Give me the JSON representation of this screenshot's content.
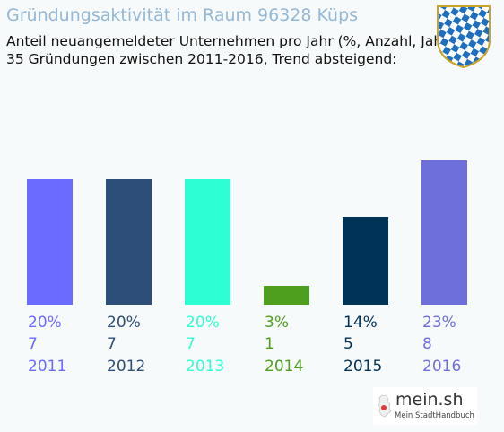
{
  "header": {
    "title": "Gründungsaktivität im Raum 96328 Küps",
    "subtitle_line1": "Anteil neuangemeldeter Unternehmen pro Jahr (%, Anzahl, Jahr)",
    "subtitle_line2": "35 Gründungen zwischen 2011-2016, Trend absteigend:"
  },
  "logo": {
    "name": "mein.sh",
    "tagline": "Mein StadtHandbuch",
    "icon": "germany-map-icon"
  },
  "crest": {
    "icon": "bavaria-coat-of-arms-icon",
    "colors": [
      "#1e6fc0",
      "#ffffff"
    ]
  },
  "chart_data": {
    "type": "bar",
    "categories": [
      "2011",
      "2012",
      "2013",
      "2014",
      "2015",
      "2016"
    ],
    "series": [
      {
        "values": [
          20,
          20,
          20,
          3,
          14,
          23
        ],
        "counts": [
          7,
          7,
          7,
          1,
          5,
          8
        ],
        "percent_labels": [
          "20%",
          "20%",
          "20%",
          "3%",
          "14%",
          "23%"
        ],
        "count_labels": [
          "7",
          "7",
          "7",
          "1",
          "5",
          "8"
        ],
        "colors": [
          "#6b6bff",
          "#2d4e78",
          "#2dffd2",
          "#4f9f1f",
          "#003358",
          "#6f6fdc"
        ]
      }
    ],
    "ylim": [
      0,
      23
    ],
    "grid": false,
    "legend": "none"
  }
}
